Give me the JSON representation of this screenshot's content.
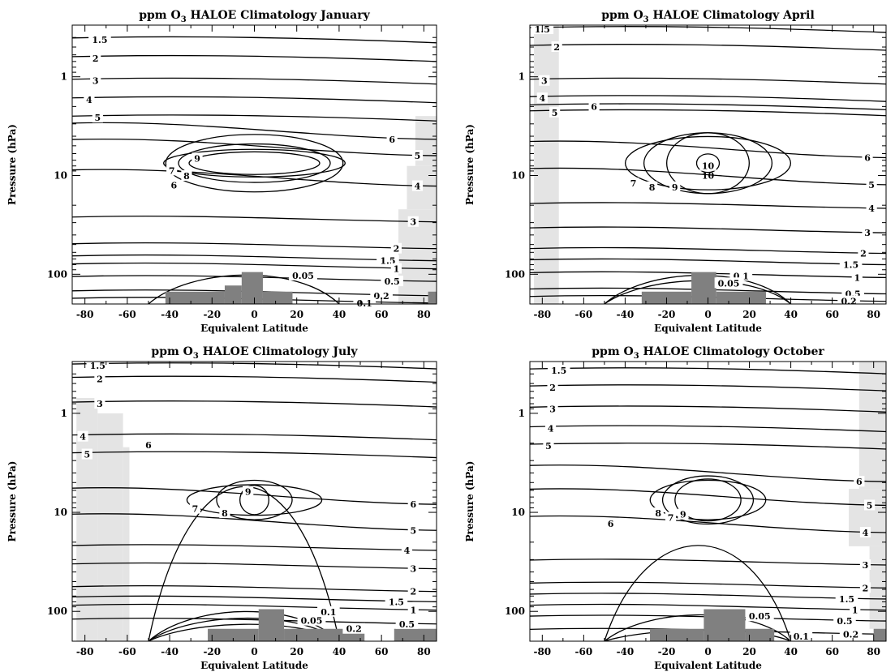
{
  "chart_data": [
    {
      "type": "contour",
      "title": "ppm O3  HALOE Climatology January",
      "title_parts": {
        "pre": "ppm O",
        "sub": "3",
        "post": "  HALOE Climatology January"
      },
      "xlabel": "Equivalent Latitude",
      "ylabel": "Pressure (hPa)",
      "xlim": [
        -86,
        86
      ],
      "ylim": [
        200,
        0.3
      ],
      "yscale": "log",
      "xticks": [
        -80,
        -60,
        -40,
        -20,
        0,
        20,
        40,
        60,
        80
      ],
      "yticks": [
        1,
        10,
        100
      ],
      "contour_levels": [
        "1.5",
        "2",
        "3",
        "4",
        "5",
        "6",
        "7",
        "8",
        "9",
        "6",
        "5",
        "4",
        "3",
        "2",
        "1.5",
        "1",
        "0.5",
        "0.2",
        "0.1",
        "0.05"
      ],
      "peak_label": "",
      "contour_labels": [
        {
          "text": "1.5",
          "x": -73,
          "p": 0.42
        },
        {
          "text": "2",
          "x": -75,
          "p": 0.65
        },
        {
          "text": "3",
          "x": -75,
          "p": 1.1
        },
        {
          "text": "4",
          "x": -78,
          "p": 1.7
        },
        {
          "text": "5",
          "x": -74,
          "p": 2.6
        },
        {
          "text": "6",
          "x": -38,
          "p": 12.6
        },
        {
          "text": "7",
          "x": -39,
          "p": 8.9
        },
        {
          "text": "8",
          "x": -32,
          "p": 10.1
        },
        {
          "text": "9",
          "x": -27,
          "p": 6.7
        },
        {
          "text": "6",
          "x": 65,
          "p": 4.3
        },
        {
          "text": "5",
          "x": 77,
          "p": 6.3
        },
        {
          "text": "4",
          "x": 77,
          "p": 12.8
        },
        {
          "text": "3",
          "x": 75,
          "p": 29.5
        },
        {
          "text": "2",
          "x": 67,
          "p": 55
        },
        {
          "text": "1.5",
          "x": 63,
          "p": 73
        },
        {
          "text": "1",
          "x": 67,
          "p": 88
        },
        {
          "text": "0.5",
          "x": 65,
          "p": 118
        },
        {
          "text": "0.2",
          "x": 60,
          "p": 165
        },
        {
          "text": "0.1",
          "x": 52,
          "p": 196
        },
        {
          "text": "0.05",
          "x": 23,
          "p": 103
        }
      ],
      "shaded_regions": [
        {
          "x0": 68,
          "x1": 86,
          "p0": 22,
          "p1": 200
        },
        {
          "x0": 72,
          "x1": 86,
          "p0": 8,
          "p1": 22
        },
        {
          "x0": 76,
          "x1": 86,
          "p0": 2.5,
          "p1": 8
        }
      ],
      "tropopause_blocks": [
        {
          "x0": -42,
          "x1": -14,
          "p_top": 150
        },
        {
          "x0": -14,
          "x1": -6,
          "p_top": 130
        },
        {
          "x0": -6,
          "x1": 4,
          "p_top": 95
        },
        {
          "x0": 4,
          "x1": 18,
          "p_top": 150
        },
        {
          "x0": 82,
          "x1": 86,
          "p_top": 150
        }
      ]
    },
    {
      "type": "contour",
      "title": "ppm O3  HALOE Climatology April",
      "title_parts": {
        "pre": "ppm O",
        "sub": "3",
        "post": "  HALOE Climatology April"
      },
      "xlabel": "Equivalent Latitude",
      "ylabel": "Pressure (hPa)",
      "xlim": [
        -86,
        86
      ],
      "ylim": [
        200,
        0.3
      ],
      "yscale": "log",
      "xticks": [
        -80,
        -60,
        -40,
        -20,
        0,
        20,
        40,
        60,
        80
      ],
      "yticks": [
        1,
        10,
        100
      ],
      "contour_levels": [
        "1.5",
        "2",
        "3",
        "4",
        "5",
        "6",
        "7",
        "8",
        "9",
        "10",
        "6",
        "5",
        "4",
        "3",
        "2",
        "1.5",
        "1",
        "0.5",
        "0.2",
        "0.1",
        "0.05"
      ],
      "peak_label": "10",
      "contour_labels": [
        {
          "text": "1.5",
          "x": -80,
          "p": 0.33
        },
        {
          "text": "2",
          "x": -73,
          "p": 0.5
        },
        {
          "text": "3",
          "x": -79,
          "p": 1.1
        },
        {
          "text": "4",
          "x": -80,
          "p": 1.65
        },
        {
          "text": "5",
          "x": -74,
          "p": 2.3
        },
        {
          "text": "6",
          "x": -55,
          "p": 2.0
        },
        {
          "text": "7",
          "x": -36,
          "p": 12.0
        },
        {
          "text": "8",
          "x": -27,
          "p": 13.1
        },
        {
          "text": "9",
          "x": -16,
          "p": 13.1
        },
        {
          "text": "10",
          "x": 0,
          "p": 8.0
        },
        {
          "text": "6",
          "x": 77,
          "p": 6.6
        },
        {
          "text": "5",
          "x": 79,
          "p": 12.4
        },
        {
          "text": "4",
          "x": 79,
          "p": 21.5
        },
        {
          "text": "3",
          "x": 77,
          "p": 38.0
        },
        {
          "text": "2",
          "x": 75,
          "p": 61.5
        },
        {
          "text": "1.5",
          "x": 69,
          "p": 80
        },
        {
          "text": "1",
          "x": 72,
          "p": 108
        },
        {
          "text": "0.5",
          "x": 70,
          "p": 158
        },
        {
          "text": "0.2",
          "x": 68,
          "p": 188
        },
        {
          "text": "0.1",
          "x": 16,
          "p": 104
        },
        {
          "text": "0.05",
          "x": 10,
          "p": 123
        }
      ],
      "shaded_regions": [
        {
          "x0": -84,
          "x1": -72,
          "p0": 0.3,
          "p1": 200
        }
      ],
      "tropopause_blocks": [
        {
          "x0": -32,
          "x1": -8,
          "p_top": 150
        },
        {
          "x0": -8,
          "x1": 4,
          "p_top": 95
        },
        {
          "x0": 4,
          "x1": 28,
          "p_top": 150
        }
      ]
    },
    {
      "type": "contour",
      "title": "ppm O3  HALOE Climatology July",
      "title_parts": {
        "pre": "ppm O",
        "sub": "3",
        "post": "  HALOE Climatology July"
      },
      "xlabel": "Equivalent Latitude",
      "ylabel": "Pressure (hPa)",
      "xlim": [
        -86,
        86
      ],
      "ylim": [
        200,
        0.3
      ],
      "yscale": "log",
      "xticks": [
        -80,
        -60,
        -40,
        -20,
        0,
        20,
        40,
        60,
        80
      ],
      "yticks": [
        1,
        10,
        100
      ],
      "contour_levels": [
        "1.5",
        "2",
        "3",
        "4",
        "5",
        "6",
        "7",
        "8",
        "9",
        "6",
        "5",
        "4",
        "3",
        "2",
        "1.5",
        "1",
        "0.5",
        "0.2",
        "0.1",
        "0.05"
      ],
      "peak_label": "",
      "contour_labels": [
        {
          "text": "1.5",
          "x": -74,
          "p": 0.33
        },
        {
          "text": "2",
          "x": -73,
          "p": 0.45
        },
        {
          "text": "3",
          "x": -73,
          "p": 0.8
        },
        {
          "text": "4",
          "x": -81,
          "p": 1.72
        },
        {
          "text": "5",
          "x": -79,
          "p": 2.6
        },
        {
          "text": "6",
          "x": -50,
          "p": 2.1
        },
        {
          "text": "7",
          "x": -28,
          "p": 9.2
        },
        {
          "text": "8",
          "x": -14,
          "p": 10.2
        },
        {
          "text": "9",
          "x": -3,
          "p": 6.2
        },
        {
          "text": "6",
          "x": 75,
          "p": 8.3
        },
        {
          "text": "5",
          "x": 75,
          "p": 15.2
        },
        {
          "text": "4",
          "x": 72,
          "p": 24.2
        },
        {
          "text": "3",
          "x": 75,
          "p": 37.1
        },
        {
          "text": "2",
          "x": 75,
          "p": 63
        },
        {
          "text": "1.5",
          "x": 67,
          "p": 80
        },
        {
          "text": "1",
          "x": 75,
          "p": 97
        },
        {
          "text": "0.5",
          "x": 72,
          "p": 134
        },
        {
          "text": "0.2",
          "x": 47,
          "p": 150
        },
        {
          "text": "0.1",
          "x": 35,
          "p": 101
        },
        {
          "text": "0.05",
          "x": 27,
          "p": 124
        }
      ],
      "shaded_regions": [
        {
          "x0": -84,
          "x1": -74,
          "p0": 0.7,
          "p1": 200
        },
        {
          "x0": -74,
          "x1": -62,
          "p0": 1.0,
          "p1": 200
        },
        {
          "x0": -62,
          "x1": -59,
          "p0": 2.2,
          "p1": 200
        }
      ],
      "tropopause_blocks": [
        {
          "x0": -22,
          "x1": 2,
          "p_top": 150
        },
        {
          "x0": 2,
          "x1": 14,
          "p_top": 95
        },
        {
          "x0": 14,
          "x1": 52,
          "p_top": 150
        },
        {
          "x0": 66,
          "x1": 86,
          "p_top": 150
        }
      ]
    },
    {
      "type": "contour",
      "title": "ppm O3  HALOE Climatology October",
      "title_parts": {
        "pre": "ppm O",
        "sub": "3",
        "post": "  HALOE Climatology October"
      },
      "xlabel": "Equivalent Latitude",
      "ylabel": "Pressure (hPa)",
      "xlim": [
        -86,
        86
      ],
      "ylim": [
        200,
        0.3
      ],
      "yscale": "log",
      "xticks": [
        -80,
        -60,
        -40,
        -20,
        0,
        20,
        40,
        60,
        80
      ],
      "yticks": [
        1,
        10,
        100
      ],
      "contour_levels": [
        "1.5",
        "2",
        "3",
        "4",
        "5",
        "6",
        "7",
        "8",
        "9",
        "6",
        "5",
        "4",
        "3",
        "2",
        "1.5",
        "1",
        "0.5",
        "0.2",
        "0.1",
        "0.05"
      ],
      "peak_label": "",
      "contour_labels": [
        {
          "text": "1.5",
          "x": -72,
          "p": 0.37
        },
        {
          "text": "2",
          "x": -75,
          "p": 0.55
        },
        {
          "text": "3",
          "x": -75,
          "p": 0.9
        },
        {
          "text": "4",
          "x": -76,
          "p": 1.42
        },
        {
          "text": "5",
          "x": -77,
          "p": 2.13
        },
        {
          "text": "6",
          "x": -47,
          "p": 13.0
        },
        {
          "text": "7",
          "x": -18,
          "p": 11.3
        },
        {
          "text": "8",
          "x": -24,
          "p": 10.2
        },
        {
          "text": "9",
          "x": -12,
          "p": 10.5
        },
        {
          "text": "6",
          "x": 73,
          "p": 4.9
        },
        {
          "text": "5",
          "x": 78,
          "p": 8.5
        },
        {
          "text": "4",
          "x": 76,
          "p": 16.0
        },
        {
          "text": "3",
          "x": 76,
          "p": 34.0
        },
        {
          "text": "2",
          "x": 76,
          "p": 58
        },
        {
          "text": "1.5",
          "x": 67,
          "p": 75
        },
        {
          "text": "1",
          "x": 71,
          "p": 97
        },
        {
          "text": "0.5",
          "x": 66,
          "p": 125
        },
        {
          "text": "0.2",
          "x": 69,
          "p": 170
        },
        {
          "text": "0.1",
          "x": 45,
          "p": 179
        },
        {
          "text": "0.05",
          "x": 25,
          "p": 112
        }
      ],
      "shaded_regions": [
        {
          "x0": 73,
          "x1": 86,
          "p0": 0.3,
          "p1": 5.8
        },
        {
          "x0": 68,
          "x1": 86,
          "p0": 5.8,
          "p1": 22
        },
        {
          "x0": 78,
          "x1": 86,
          "p0": 22,
          "p1": 150
        }
      ],
      "tropopause_blocks": [
        {
          "x0": -28,
          "x1": -2,
          "p_top": 150
        },
        {
          "x0": -2,
          "x1": 18,
          "p_top": 95
        },
        {
          "x0": 18,
          "x1": 32,
          "p_top": 150
        },
        {
          "x0": 80,
          "x1": 86,
          "p_top": 150
        }
      ]
    }
  ]
}
